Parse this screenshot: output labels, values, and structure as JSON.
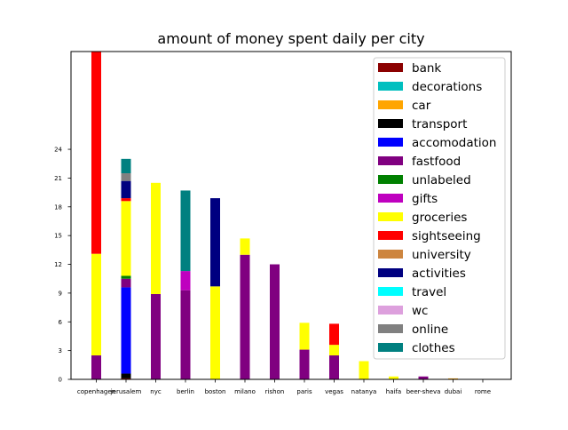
{
  "chart_data": {
    "type": "bar",
    "stacked": true,
    "title": "amount of money spent daily per city",
    "xlabel": "",
    "ylabel": "",
    "categories": [
      "copenhagen",
      "jerusalem",
      "nyc",
      "berlin",
      "boston",
      "milano",
      "rishon",
      "paris",
      "vegas",
      "natanya",
      "haifa",
      "beer-sheva",
      "dubai",
      "rome"
    ],
    "yticks": [
      0,
      3,
      6,
      9,
      12,
      15,
      18,
      21,
      24
    ],
    "ylim": [
      0,
      34.2
    ],
    "grid": false,
    "legend_position": "top-right",
    "series": [
      {
        "name": "bank",
        "color": "#8b0000",
        "values": [
          0,
          0.1,
          0,
          0,
          0,
          0,
          0,
          0,
          0,
          0,
          0,
          0,
          0,
          0
        ]
      },
      {
        "name": "decorations",
        "color": "#00bfbf",
        "values": [
          0,
          0,
          0,
          0,
          0,
          0,
          0,
          0,
          0,
          0,
          0,
          0,
          0,
          0
        ]
      },
      {
        "name": "car",
        "color": "#ffa500",
        "values": [
          0,
          0,
          0,
          0,
          0,
          0,
          0,
          0,
          0,
          0,
          0,
          0,
          0.1,
          0
        ]
      },
      {
        "name": "transport",
        "color": "#000000",
        "values": [
          0,
          0.5,
          0,
          0,
          0,
          0,
          0,
          0,
          0,
          0,
          0,
          0,
          0,
          0
        ]
      },
      {
        "name": "accomodation",
        "color": "#0000ff",
        "values": [
          0,
          9.0,
          0,
          0,
          0,
          0,
          0,
          0,
          0,
          0,
          0,
          0,
          0,
          0
        ]
      },
      {
        "name": "fastfood",
        "color": "#800080",
        "values": [
          2.5,
          0.9,
          8.9,
          9.3,
          0,
          13.0,
          12.0,
          3.1,
          2.5,
          0,
          0,
          0.3,
          0,
          0
        ]
      },
      {
        "name": "unlabeled",
        "color": "#008000",
        "values": [
          0,
          0.3,
          0,
          0,
          0,
          0,
          0,
          0,
          0,
          0,
          0,
          0,
          0,
          0
        ]
      },
      {
        "name": "gifts",
        "color": "#bf00bf",
        "values": [
          0,
          0,
          0,
          2.0,
          0,
          0,
          0,
          0,
          0,
          0,
          0,
          0,
          0,
          0
        ]
      },
      {
        "name": "groceries",
        "color": "#ffff00",
        "values": [
          10.6,
          7.8,
          11.6,
          0,
          9.7,
          1.7,
          0,
          2.8,
          1.1,
          1.9,
          0.3,
          0,
          0,
          0
        ]
      },
      {
        "name": "sightseeing",
        "color": "#ff0000",
        "values": [
          21.1,
          0.3,
          0,
          0,
          0,
          0,
          0,
          0,
          2.2,
          0,
          0,
          0,
          0,
          0
        ]
      },
      {
        "name": "university",
        "color": "#cd853f",
        "values": [
          0,
          0,
          0,
          0,
          0,
          0,
          0,
          0,
          0,
          0,
          0,
          0,
          0,
          0
        ]
      },
      {
        "name": "activities",
        "color": "#000080",
        "values": [
          0,
          1.8,
          0,
          0,
          9.2,
          0,
          0,
          0,
          0,
          0,
          0,
          0,
          0,
          0
        ]
      },
      {
        "name": "travel",
        "color": "#00ffff",
        "values": [
          0,
          0,
          0,
          0,
          0,
          0,
          0,
          0,
          0,
          0,
          0,
          0,
          0,
          0
        ]
      },
      {
        "name": "wc",
        "color": "#dda0dd",
        "values": [
          0,
          0,
          0,
          0,
          0,
          0,
          0,
          0,
          0,
          0,
          0,
          0,
          0,
          0
        ]
      },
      {
        "name": "online",
        "color": "#808080",
        "values": [
          0,
          0.8,
          0,
          0,
          0,
          0,
          0,
          0,
          0,
          0,
          0,
          0,
          0,
          0
        ]
      },
      {
        "name": "clothes",
        "color": "#008080",
        "values": [
          0,
          1.5,
          0,
          8.4,
          0,
          0,
          0,
          0,
          0,
          0,
          0,
          0,
          0,
          0
        ]
      }
    ]
  }
}
